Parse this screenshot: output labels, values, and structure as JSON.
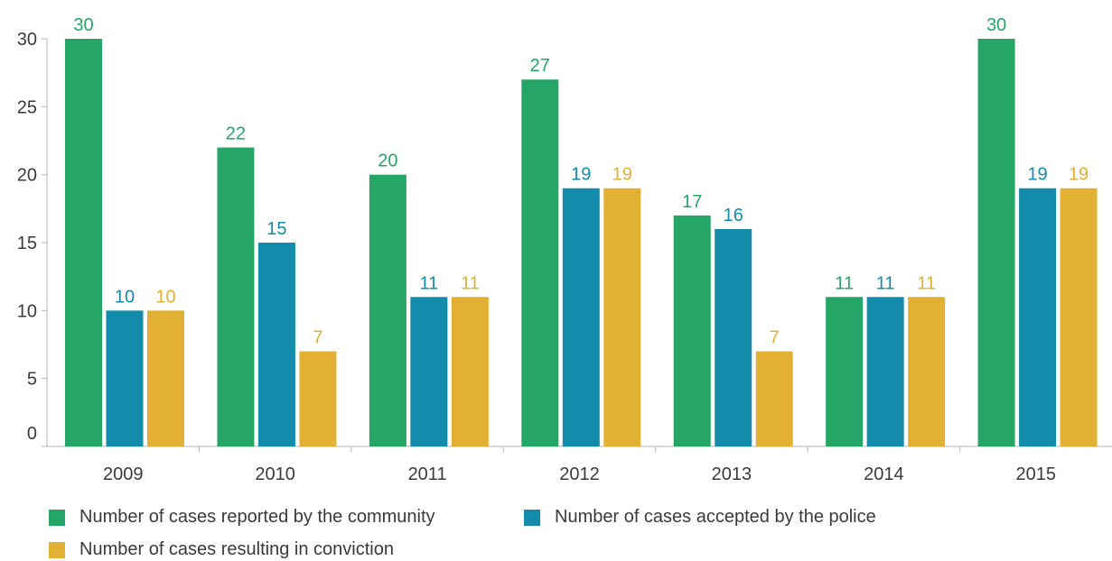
{
  "chart_data": {
    "type": "bar",
    "categories": [
      "2009",
      "2010",
      "2011",
      "2012",
      "2013",
      "2014",
      "2015"
    ],
    "series": [
      {
        "name": "Number of cases reported by the community",
        "color": "#25a666",
        "values": [
          30,
          22,
          20,
          27,
          17,
          11,
          30
        ]
      },
      {
        "name": "Number of cases accepted by the police",
        "color": "#138bab",
        "values": [
          10,
          15,
          11,
          19,
          16,
          11,
          19
        ]
      },
      {
        "name": "Number of cases resulting in conviction",
        "color": "#e2b033",
        "values": [
          10,
          7,
          11,
          19,
          7,
          11,
          19
        ]
      }
    ],
    "ylim": [
      0,
      30
    ],
    "yticks": [
      0,
      5,
      10,
      15,
      20,
      25,
      30
    ],
    "grid": false,
    "data_labels": true,
    "legend_position": "bottom-left"
  }
}
